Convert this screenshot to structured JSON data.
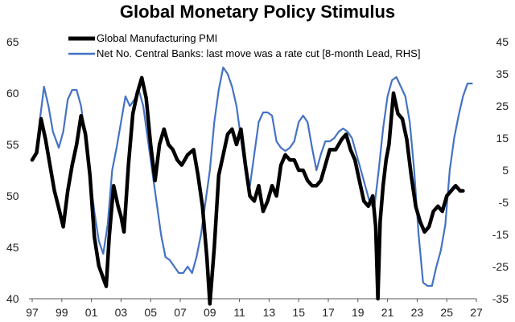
{
  "chart_data": {
    "type": "line",
    "title": "Global Monetary Policy Stimulus",
    "x_ticks": [
      "97",
      "99",
      "01",
      "03",
      "05",
      "07",
      "09",
      "11",
      "13",
      "15",
      "17",
      "19",
      "21",
      "23",
      "25",
      "27"
    ],
    "y_left": {
      "ticks": [
        "40",
        "45",
        "50",
        "55",
        "60",
        "65"
      ],
      "range": [
        40,
        65
      ]
    },
    "y_right": {
      "ticks": [
        "-35",
        "-25",
        "-15",
        "-5",
        "5",
        "15",
        "25",
        "35",
        "45"
      ],
      "range": [
        -35,
        45
      ]
    },
    "x_range": [
      1997.0,
      2027.0
    ],
    "grid": false,
    "legend_position": "top-center",
    "series": [
      {
        "name": "Global Manufacturing PMI",
        "axis": "left",
        "color": "#000000",
        "points": [
          [
            1997.0,
            53.5
          ],
          [
            1997.3,
            54.2
          ],
          [
            1997.6,
            57.5
          ],
          [
            1997.9,
            55.5
          ],
          [
            1998.2,
            53.0
          ],
          [
            1998.5,
            50.5
          ],
          [
            1998.8,
            48.8
          ],
          [
            1999.1,
            47.0
          ],
          [
            1999.4,
            50.5
          ],
          [
            1999.7,
            53.0
          ],
          [
            2000.0,
            55.0
          ],
          [
            2000.3,
            57.8
          ],
          [
            2000.6,
            56.0
          ],
          [
            2000.9,
            52.0
          ],
          [
            2001.2,
            46.0
          ],
          [
            2001.5,
            43.2
          ],
          [
            2001.8,
            42.0
          ],
          [
            2002.0,
            41.2
          ],
          [
            2002.2,
            46.0
          ],
          [
            2002.5,
            51.0
          ],
          [
            2002.8,
            49.0
          ],
          [
            2003.0,
            48.0
          ],
          [
            2003.2,
            46.5
          ],
          [
            2003.5,
            53.0
          ],
          [
            2003.8,
            58.0
          ],
          [
            2004.1,
            60.0
          ],
          [
            2004.4,
            61.5
          ],
          [
            2004.7,
            59.5
          ],
          [
            2005.0,
            55.0
          ],
          [
            2005.3,
            51.5
          ],
          [
            2005.6,
            55.0
          ],
          [
            2005.9,
            56.5
          ],
          [
            2006.2,
            55.0
          ],
          [
            2006.5,
            54.5
          ],
          [
            2006.8,
            53.5
          ],
          [
            2007.1,
            53.0
          ],
          [
            2007.5,
            54.0
          ],
          [
            2007.9,
            54.5
          ],
          [
            2008.2,
            52.0
          ],
          [
            2008.5,
            49.0
          ],
          [
            2008.8,
            44.0
          ],
          [
            2009.0,
            39.5
          ],
          [
            2009.3,
            45.0
          ],
          [
            2009.6,
            52.0
          ],
          [
            2009.9,
            54.0
          ],
          [
            2010.2,
            56.0
          ],
          [
            2010.5,
            56.5
          ],
          [
            2010.8,
            55.0
          ],
          [
            2011.1,
            56.5
          ],
          [
            2011.4,
            53.0
          ],
          [
            2011.7,
            50.0
          ],
          [
            2012.0,
            49.5
          ],
          [
            2012.3,
            51.0
          ],
          [
            2012.6,
            48.5
          ],
          [
            2012.9,
            49.5
          ],
          [
            2013.2,
            51.0
          ],
          [
            2013.5,
            50.0
          ],
          [
            2013.8,
            53.0
          ],
          [
            2014.1,
            54.0
          ],
          [
            2014.4,
            53.5
          ],
          [
            2014.7,
            53.5
          ],
          [
            2015.0,
            52.5
          ],
          [
            2015.3,
            52.5
          ],
          [
            2015.6,
            51.5
          ],
          [
            2015.9,
            51.0
          ],
          [
            2016.2,
            51.0
          ],
          [
            2016.5,
            51.5
          ],
          [
            2016.8,
            53.0
          ],
          [
            2017.1,
            54.5
          ],
          [
            2017.5,
            54.5
          ],
          [
            2017.9,
            55.5
          ],
          [
            2018.2,
            56.0
          ],
          [
            2018.5,
            54.5
          ],
          [
            2018.8,
            53.5
          ],
          [
            2019.1,
            51.5
          ],
          [
            2019.4,
            49.5
          ],
          [
            2019.7,
            49.0
          ],
          [
            2020.0,
            50.0
          ],
          [
            2020.2,
            47.0
          ],
          [
            2020.35,
            40.0
          ],
          [
            2020.5,
            47.5
          ],
          [
            2020.7,
            51.0
          ],
          [
            2020.9,
            53.5
          ],
          [
            2021.1,
            55.0
          ],
          [
            2021.4,
            60.0
          ],
          [
            2021.7,
            58.0
          ],
          [
            2022.0,
            57.5
          ],
          [
            2022.3,
            55.5
          ],
          [
            2022.6,
            52.0
          ],
          [
            2022.9,
            49.0
          ],
          [
            2023.2,
            47.5
          ],
          [
            2023.5,
            46.5
          ],
          [
            2023.8,
            47.0
          ],
          [
            2024.1,
            48.5
          ],
          [
            2024.4,
            49.0
          ],
          [
            2024.7,
            48.5
          ],
          [
            2025.0,
            50.0
          ],
          [
            2025.3,
            50.5
          ],
          [
            2025.6,
            51.0
          ],
          [
            2025.9,
            50.5
          ],
          [
            2026.1,
            50.5
          ]
        ]
      },
      {
        "name": "Net No. Central Banks: last move was a rate cut  [8-month Lead, RHS]",
        "axis": "right",
        "color": "#4472c4",
        "points": [
          [
            1997.5,
            20
          ],
          [
            1997.8,
            31
          ],
          [
            1998.1,
            25
          ],
          [
            1998.4,
            17
          ],
          [
            1998.8,
            12
          ],
          [
            1999.1,
            17
          ],
          [
            1999.4,
            27
          ],
          [
            1999.7,
            30
          ],
          [
            2000.0,
            30
          ],
          [
            2000.3,
            25
          ],
          [
            2000.6,
            15
          ],
          [
            2000.9,
            3
          ],
          [
            2001.2,
            -8
          ],
          [
            2001.5,
            -17
          ],
          [
            2001.8,
            -21
          ],
          [
            2002.1,
            -12
          ],
          [
            2002.4,
            5
          ],
          [
            2002.7,
            12
          ],
          [
            2003.0,
            20
          ],
          [
            2003.3,
            28
          ],
          [
            2003.6,
            25
          ],
          [
            2003.9,
            27
          ],
          [
            2004.2,
            30
          ],
          [
            2004.5,
            25
          ],
          [
            2004.8,
            15
          ],
          [
            2005.1,
            5
          ],
          [
            2005.4,
            -5
          ],
          [
            2005.7,
            -15
          ],
          [
            2006.0,
            -22
          ],
          [
            2006.3,
            -23
          ],
          [
            2006.6,
            -25
          ],
          [
            2006.9,
            -27
          ],
          [
            2007.2,
            -27
          ],
          [
            2007.5,
            -25
          ],
          [
            2007.8,
            -27
          ],
          [
            2008.1,
            -22
          ],
          [
            2008.4,
            -15
          ],
          [
            2008.7,
            -5
          ],
          [
            2009.0,
            5
          ],
          [
            2009.3,
            20
          ],
          [
            2009.6,
            30
          ],
          [
            2009.9,
            37
          ],
          [
            2010.2,
            35
          ],
          [
            2010.5,
            31
          ],
          [
            2010.8,
            25
          ],
          [
            2011.1,
            15
          ],
          [
            2011.4,
            5
          ],
          [
            2011.7,
            0
          ],
          [
            2012.0,
            10
          ],
          [
            2012.3,
            20
          ],
          [
            2012.6,
            23
          ],
          [
            2012.9,
            23
          ],
          [
            2013.2,
            22
          ],
          [
            2013.5,
            14
          ],
          [
            2013.8,
            12
          ],
          [
            2014.1,
            11
          ],
          [
            2014.4,
            12
          ],
          [
            2014.7,
            14
          ],
          [
            2015.0,
            20
          ],
          [
            2015.3,
            22
          ],
          [
            2015.6,
            20
          ],
          [
            2015.9,
            12
          ],
          [
            2016.2,
            5
          ],
          [
            2016.5,
            10
          ],
          [
            2016.8,
            14
          ],
          [
            2017.1,
            14
          ],
          [
            2017.4,
            15
          ],
          [
            2017.7,
            17
          ],
          [
            2018.0,
            18
          ],
          [
            2018.3,
            17
          ],
          [
            2018.6,
            15
          ],
          [
            2018.9,
            10
          ],
          [
            2019.2,
            5
          ],
          [
            2019.5,
            0
          ],
          [
            2019.8,
            -5
          ],
          [
            2020.1,
            -7
          ],
          [
            2020.4,
            5
          ],
          [
            2020.7,
            18
          ],
          [
            2021.0,
            28
          ],
          [
            2021.3,
            33
          ],
          [
            2021.6,
            34
          ],
          [
            2021.9,
            31
          ],
          [
            2022.2,
            28
          ],
          [
            2022.5,
            20
          ],
          [
            2022.8,
            5
          ],
          [
            2023.1,
            -15
          ],
          [
            2023.4,
            -30
          ],
          [
            2023.7,
            -31
          ],
          [
            2024.0,
            -31
          ],
          [
            2024.3,
            -25
          ],
          [
            2024.6,
            -20
          ],
          [
            2024.9,
            -12
          ],
          [
            2025.2,
            5
          ],
          [
            2025.5,
            15
          ],
          [
            2025.8,
            22
          ],
          [
            2026.1,
            28
          ],
          [
            2026.4,
            32
          ],
          [
            2026.7,
            32
          ]
        ]
      }
    ]
  }
}
